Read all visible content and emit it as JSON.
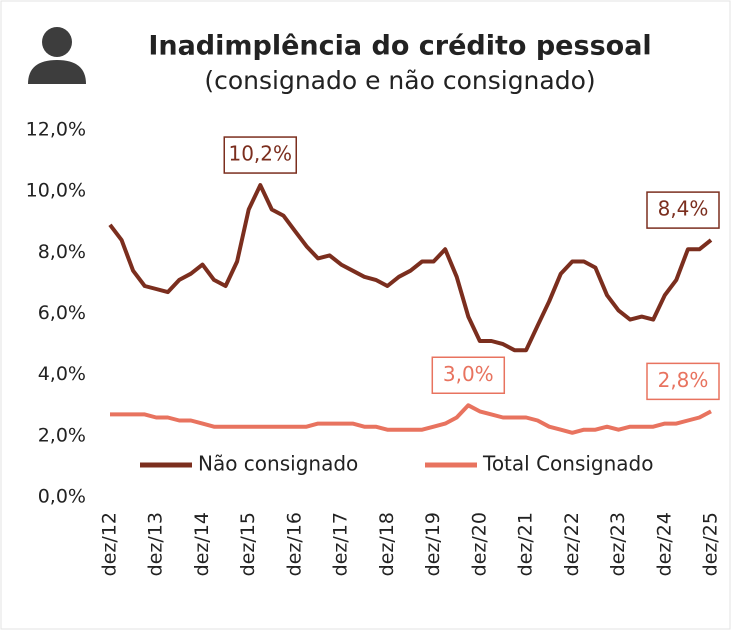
{
  "chart_data": {
    "type": "line",
    "title": "Inadimplência do crédito pessoal",
    "subtitle": "(consignado e não consignado)",
    "categories": [
      "dez/12",
      null,
      null,
      null,
      "dez/13",
      null,
      null,
      null,
      "dez/14",
      null,
      null,
      null,
      "dez/15",
      null,
      null,
      null,
      "dez/16",
      null,
      null,
      null,
      "dez/17",
      null,
      null,
      null,
      "dez/18",
      null,
      null,
      null,
      "dez/19",
      null,
      null,
      null,
      "dez/20",
      null,
      null,
      null,
      "dez/21",
      null,
      null,
      null,
      "dez/22",
      null,
      null,
      null,
      "dez/23",
      null,
      null,
      null,
      "dez/24",
      null,
      null,
      null,
      "dez/25"
    ],
    "series": [
      {
        "name": "Não consignado",
        "color": "#7b2e1e",
        "values": [
          8.9,
          8.4,
          7.4,
          6.9,
          6.8,
          6.7,
          7.1,
          7.3,
          7.6,
          7.1,
          6.9,
          7.7,
          9.4,
          10.2,
          9.4,
          9.2,
          8.7,
          8.2,
          7.8,
          7.9,
          7.6,
          7.4,
          7.2,
          7.1,
          6.9,
          7.2,
          7.4,
          7.7,
          7.7,
          8.1,
          7.2,
          5.9,
          5.1,
          5.1,
          5.0,
          4.8,
          4.8,
          5.6,
          6.4,
          7.3,
          7.7,
          7.7,
          7.5,
          6.6,
          6.1,
          5.8,
          5.9,
          5.8,
          6.6,
          7.1,
          8.1,
          8.1,
          8.4
        ],
        "value_labels": [
          null,
          null,
          null,
          null,
          null,
          null,
          null,
          null,
          null,
          null,
          null,
          null,
          null,
          "10,2%",
          null,
          null,
          null,
          null,
          null,
          null,
          null,
          null,
          null,
          null,
          null,
          null,
          null,
          null,
          null,
          null,
          null,
          null,
          null,
          null,
          null,
          null,
          null,
          null,
          null,
          null,
          null,
          null,
          null,
          null,
          null,
          null,
          null,
          null,
          null,
          null,
          null,
          null,
          "8,4%"
        ]
      },
      {
        "name": "Total Consignado",
        "color": "#e8735f",
        "values": [
          2.7,
          2.7,
          2.7,
          2.7,
          2.6,
          2.6,
          2.5,
          2.5,
          2.4,
          2.3,
          2.3,
          2.3,
          2.3,
          2.3,
          2.3,
          2.3,
          2.3,
          2.3,
          2.4,
          2.4,
          2.4,
          2.4,
          2.3,
          2.3,
          2.2,
          2.2,
          2.2,
          2.2,
          2.3,
          2.4,
          2.6,
          3.0,
          2.8,
          2.7,
          2.6,
          2.6,
          2.6,
          2.5,
          2.3,
          2.2,
          2.1,
          2.2,
          2.2,
          2.3,
          2.2,
          2.3,
          2.3,
          2.3,
          2.4,
          2.4,
          2.5,
          2.6,
          2.8
        ],
        "value_labels": [
          null,
          null,
          null,
          null,
          null,
          null,
          null,
          null,
          null,
          null,
          null,
          null,
          null,
          null,
          null,
          null,
          null,
          null,
          null,
          null,
          null,
          null,
          null,
          null,
          null,
          null,
          null,
          null,
          null,
          null,
          null,
          "3,0%",
          null,
          null,
          null,
          null,
          null,
          null,
          null,
          null,
          null,
          null,
          null,
          null,
          null,
          null,
          null,
          null,
          null,
          null,
          null,
          null,
          "2,8%"
        ]
      }
    ],
    "ylim": [
      0,
      12
    ],
    "yticks": [
      {
        "value": 0,
        "label": "0,0%"
      },
      {
        "value": 2,
        "label": "2,0%"
      },
      {
        "value": 4,
        "label": "4,0%"
      },
      {
        "value": 6,
        "label": "6,0%"
      },
      {
        "value": 8,
        "label": "8,0%"
      },
      {
        "value": 10,
        "label": "10,0%"
      },
      {
        "value": 12,
        "label": "12,0%"
      }
    ],
    "legend": "bottom",
    "grid": false
  }
}
